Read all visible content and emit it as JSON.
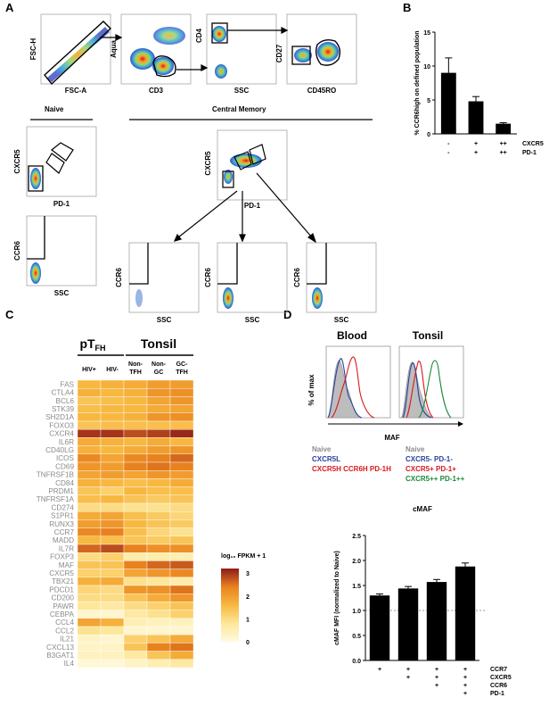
{
  "panel_letters": [
    "A",
    "B",
    "C",
    "D"
  ],
  "panel_a": {
    "gating_axes": [
      {
        "y": "FSC-H",
        "x": "FSC-A"
      },
      {
        "y": "Aqua",
        "x": "CD3"
      },
      {
        "y": "CD4",
        "x": "SSC"
      },
      {
        "y": "CD27",
        "x": "CD45RO"
      }
    ],
    "naive_label": "Naive",
    "cm_label": "Central Memory",
    "row2": [
      {
        "y": "CXCR5",
        "x": "PD-1"
      },
      {
        "y": "CXCR5",
        "x": "PD-1"
      }
    ],
    "row3": [
      {
        "y": "CCR6",
        "x": "SSC"
      },
      {
        "y": "CCR6",
        "x": "SSC"
      },
      {
        "y": "CCR6",
        "x": "SSC"
      },
      {
        "y": "CCR6",
        "x": "SSC"
      }
    ]
  },
  "chart_data": [
    {
      "type": "bar",
      "panel": "B",
      "ylabel": "% CCR6high on defined population",
      "ylim": [
        0,
        15
      ],
      "yticks": [
        "0",
        "5",
        "10",
        "15"
      ],
      "categories": [
        "1",
        "2",
        "3"
      ],
      "values": [
        9.0,
        4.8,
        1.5
      ],
      "errors": [
        2.2,
        0.7,
        0.15
      ],
      "row_labels": [
        {
          "name": "CXCR5",
          "marks": [
            "-",
            "+",
            "++"
          ]
        },
        {
          "name": "PD-1",
          "marks": [
            "-",
            "+",
            "++"
          ]
        }
      ]
    },
    {
      "type": "heatmap",
      "panel": "C",
      "group_labels": [
        {
          "main": "pT",
          "sub": "FH"
        },
        {
          "main": "Tonsil",
          "sub": ""
        }
      ],
      "columns": [
        [
          "HIV+"
        ],
        [
          "HIV-"
        ],
        [
          "Non-",
          "Tₑₕ"
        ],
        [
          "Non-",
          "GC"
        ],
        [
          "GC-",
          "Tₑₕ"
        ]
      ],
      "column_text": [
        {
          "top": "HIV+",
          "bottom": ""
        },
        {
          "top": "HIV-",
          "bottom": ""
        },
        {
          "top": "Non-",
          "bottom": "TFH"
        },
        {
          "top": "Non-",
          "bottom": "GC"
        },
        {
          "top": "GC-",
          "bottom": "TFH"
        }
      ],
      "rows": [
        "FAS",
        "CTLA4",
        "BCL6",
        "STK39",
        "SH2D1A",
        "FOXO3",
        "CXCR4",
        "IL6R",
        "CD40LG",
        "ICOS",
        "CD69",
        "TNFRSF1B",
        "CD84",
        "PRDM1",
        "TNFRSF1A",
        "CD274",
        "S1PR1",
        "RUNX3",
        "CCR7",
        "MADD",
        "IL7R",
        "FOXP3",
        "MAF",
        "CXCR5",
        "TBX21",
        "PDCD1",
        "CD200",
        "PAWR",
        "CEBPA",
        "CCL4",
        "CCL2",
        "IL21",
        "CXCL13",
        "B3GAT1",
        "IL4"
      ],
      "values": [
        [
          1.6,
          1.7,
          1.8,
          2.0,
          2.0
        ],
        [
          1.7,
          1.6,
          1.7,
          2.1,
          2.2
        ],
        [
          1.4,
          1.5,
          1.6,
          1.9,
          2.1
        ],
        [
          1.5,
          1.6,
          1.6,
          1.8,
          1.9
        ],
        [
          1.6,
          1.6,
          1.7,
          2.1,
          2.2
        ],
        [
          1.4,
          1.5,
          1.5,
          1.5,
          1.5
        ],
        [
          3.0,
          3.0,
          2.8,
          2.9,
          3.1
        ],
        [
          1.8,
          1.7,
          1.6,
          1.8,
          1.6
        ],
        [
          1.7,
          1.6,
          1.8,
          2.0,
          2.1
        ],
        [
          2.3,
          1.9,
          2.3,
          2.4,
          2.6
        ],
        [
          2.1,
          2.0,
          2.4,
          2.5,
          2.4
        ],
        [
          1.9,
          2.0,
          1.9,
          2.1,
          2.0
        ],
        [
          1.7,
          1.6,
          1.5,
          1.6,
          1.8
        ],
        [
          1.4,
          1.2,
          1.6,
          1.5,
          1.5
        ],
        [
          1.5,
          1.6,
          1.4,
          1.3,
          1.4
        ],
        [
          1.0,
          1.0,
          0.9,
          0.9,
          1.0
        ],
        [
          1.8,
          1.9,
          1.5,
          1.3,
          1.1
        ],
        [
          2.0,
          2.1,
          1.6,
          1.4,
          1.3
        ],
        [
          2.3,
          2.4,
          1.5,
          1.1,
          0.9
        ],
        [
          1.6,
          1.5,
          1.4,
          1.3,
          1.4
        ],
        [
          2.6,
          2.8,
          2.4,
          2.2,
          2.2
        ],
        [
          1.0,
          1.2,
          0.6,
          0.6,
          0.5
        ],
        [
          1.4,
          1.4,
          2.4,
          2.6,
          2.7
        ],
        [
          1.2,
          1.2,
          1.9,
          2.1,
          2.3
        ],
        [
          1.7,
          1.8,
          0.9,
          0.8,
          0.6
        ],
        [
          1.1,
          1.0,
          2.1,
          2.2,
          2.5
        ],
        [
          1.0,
          1.0,
          1.4,
          1.8,
          2.1
        ],
        [
          0.8,
          0.7,
          1.0,
          1.2,
          1.4
        ],
        [
          0.2,
          0.2,
          0.7,
          0.9,
          1.2
        ],
        [
          1.9,
          1.7,
          0.5,
          0.4,
          0.4
        ],
        [
          0.9,
          0.8,
          0.2,
          0.2,
          0.2
        ],
        [
          0.3,
          0.2,
          1.2,
          1.4,
          1.8
        ],
        [
          0.3,
          0.3,
          1.4,
          2.4,
          2.5
        ],
        [
          0.4,
          0.4,
          0.7,
          1.4,
          1.8
        ],
        [
          0.1,
          0.1,
          0.3,
          0.5,
          0.7
        ]
      ],
      "colorbar": {
        "label": "log₁₀ FPKM + 1",
        "ticks": [
          "3",
          "2",
          "1",
          "0"
        ],
        "range": [
          0,
          3.2
        ]
      }
    },
    {
      "type": "bar",
      "panel": "D",
      "title": "cMAF",
      "ylabel": "cMAF MFI (normalized to Naive)",
      "ylim": [
        0,
        2.5
      ],
      "yticks": [
        "0.0",
        "0.5",
        "1.0",
        "1.5",
        "2.0",
        "2.5"
      ],
      "categories": [
        "1",
        "2",
        "3",
        "4"
      ],
      "values": [
        1.3,
        1.44,
        1.57,
        1.88
      ],
      "errors": [
        0.03,
        0.04,
        0.05,
        0.07
      ],
      "reference_line": 1.0,
      "row_labels": [
        {
          "name": "CCR7",
          "marks": [
            "+",
            "+",
            "+",
            "+"
          ]
        },
        {
          "name": "CXCR5",
          "marks": [
            "",
            "+",
            "+",
            "+"
          ]
        },
        {
          "name": "CCR6",
          "marks": [
            "",
            "",
            "+",
            "+"
          ]
        },
        {
          "name": "PD-1",
          "marks": [
            "",
            "",
            "",
            "+"
          ]
        }
      ]
    }
  ],
  "panel_d": {
    "titles": [
      "Blood",
      "Tonsil"
    ],
    "ylabel": "% of max",
    "xlabel": "MAF",
    "blood_legend": [
      {
        "text": "Naive",
        "color": "#8c8c8c"
      },
      {
        "text": "CXCR5L",
        "color": "#2a3f9e"
      },
      {
        "text": "CXCR5H CCR6H PD-1H",
        "color": "#d7191c"
      }
    ],
    "tonsil_legend": [
      {
        "text": "Naive",
        "color": "#8c8c8c"
      },
      {
        "text": "CXCR5- PD-1-",
        "color": "#2a3f9e"
      },
      {
        "text": "CXCR5+ PD-1+",
        "color": "#d7191c"
      },
      {
        "text": "CXCR5++ PD-1++",
        "color": "#1a8a3a"
      }
    ]
  }
}
